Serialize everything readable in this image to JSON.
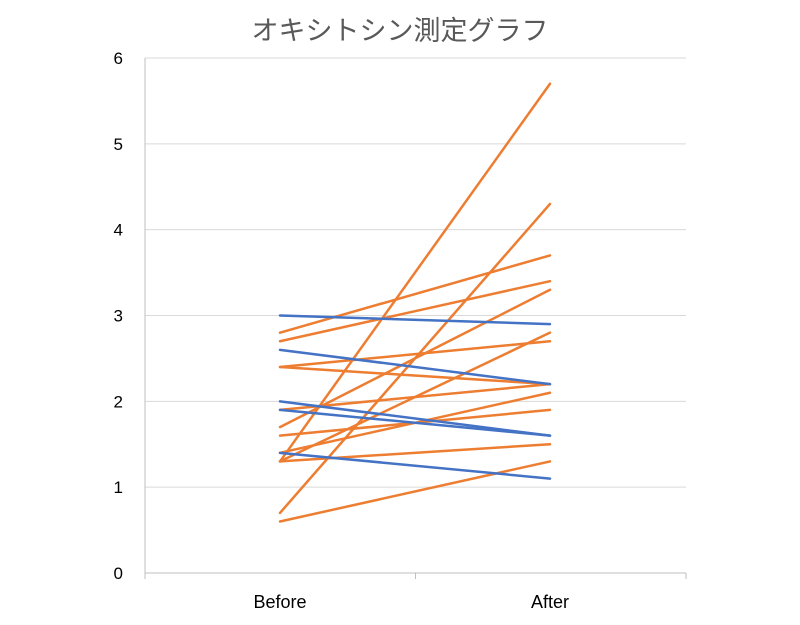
{
  "chart_data": {
    "type": "line",
    "title": "オキシトシン測定グラフ",
    "categories": [
      "Before",
      "After"
    ],
    "ylim": [
      0,
      6
    ],
    "yticks": [
      0,
      1,
      2,
      3,
      4,
      5,
      6
    ],
    "grid": true,
    "legend": "none",
    "colors": {
      "increase": "#ED7D31",
      "decrease": "#4472C4",
      "grid": "#D9D9D9",
      "axis": "#BFBFBF"
    },
    "series": [
      {
        "values": [
          3.0,
          2.9
        ],
        "color": "#4472C4"
      },
      {
        "values": [
          2.6,
          2.2
        ],
        "color": "#4472C4"
      },
      {
        "values": [
          2.0,
          1.6
        ],
        "color": "#4472C4"
      },
      {
        "values": [
          1.9,
          1.6
        ],
        "color": "#4472C4"
      },
      {
        "values": [
          1.4,
          1.1
        ],
        "color": "#4472C4"
      },
      {
        "values": [
          1.3,
          5.7
        ],
        "color": "#ED7D31"
      },
      {
        "values": [
          0.7,
          4.3
        ],
        "color": "#ED7D31"
      },
      {
        "values": [
          2.8,
          3.7
        ],
        "color": "#ED7D31"
      },
      {
        "values": [
          2.7,
          3.4
        ],
        "color": "#ED7D31"
      },
      {
        "values": [
          1.7,
          3.3
        ],
        "color": "#ED7D31"
      },
      {
        "values": [
          1.3,
          2.8
        ],
        "color": "#ED7D31"
      },
      {
        "values": [
          2.4,
          2.7
        ],
        "color": "#ED7D31"
      },
      {
        "values": [
          2.4,
          2.2
        ],
        "color": "#ED7D31"
      },
      {
        "values": [
          1.4,
          2.1
        ],
        "color": "#ED7D31"
      },
      {
        "values": [
          1.9,
          2.2
        ],
        "color": "#ED7D31"
      },
      {
        "values": [
          1.6,
          1.9
        ],
        "color": "#ED7D31"
      },
      {
        "values": [
          1.3,
          1.5
        ],
        "color": "#ED7D31"
      },
      {
        "values": [
          0.6,
          1.3
        ],
        "color": "#ED7D31"
      }
    ]
  }
}
